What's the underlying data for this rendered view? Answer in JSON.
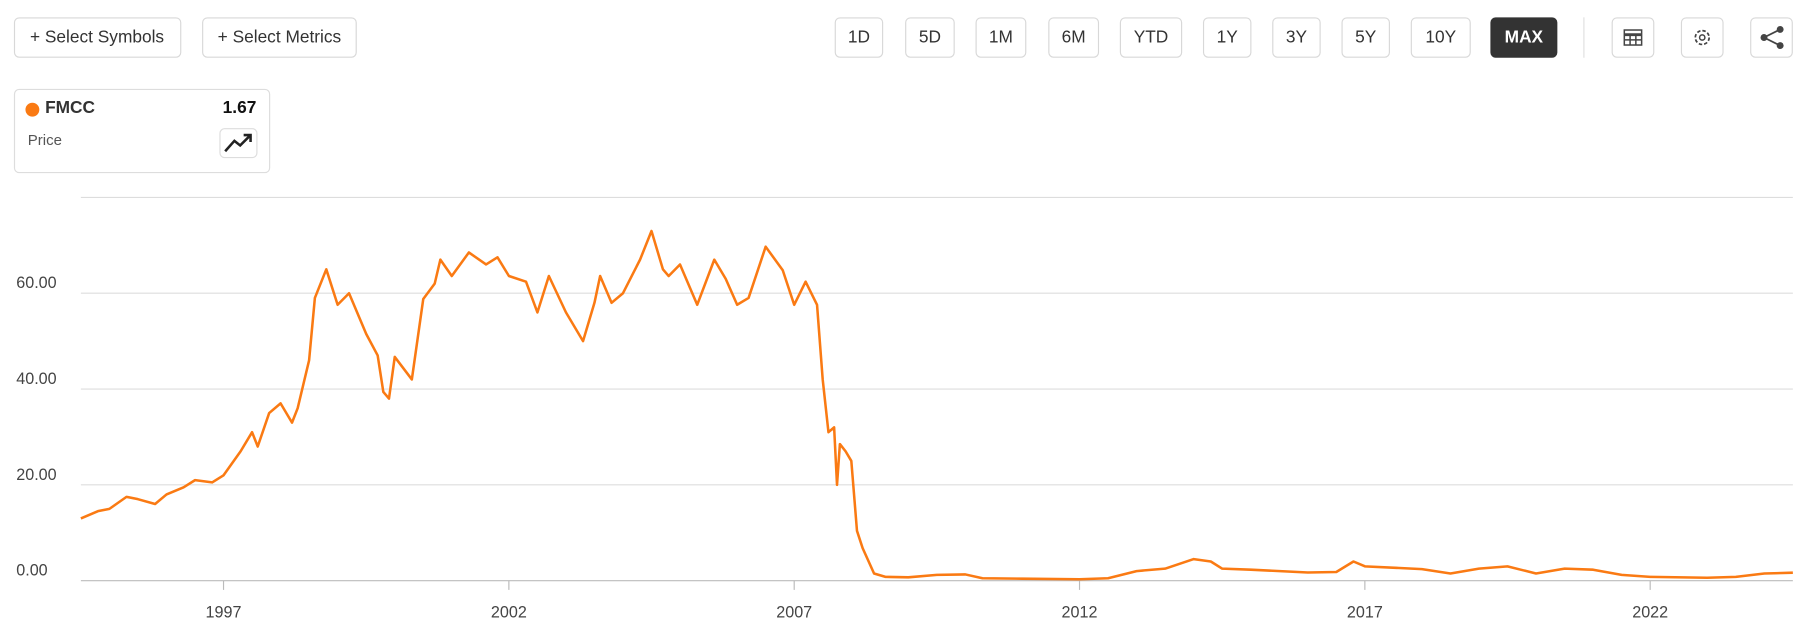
{
  "toolbar": {
    "select_symbols": "+ Select Symbols",
    "select_metrics": "+ Select Metrics",
    "ranges": [
      "1D",
      "5D",
      "1M",
      "6M",
      "YTD",
      "1Y",
      "3Y",
      "5Y",
      "10Y",
      "MAX"
    ],
    "active_range": "MAX"
  },
  "legend_box": {
    "symbol": "FMCC",
    "last_value": "1.67",
    "metric": "Price"
  },
  "chart_data": {
    "type": "line",
    "x": [
      1994.5,
      1994.8,
      1995.0,
      1995.3,
      1995.5,
      1995.8,
      1996.0,
      1996.3,
      1996.5,
      1996.8,
      1997.0,
      1997.3,
      1997.5,
      1997.6,
      1997.8,
      1998.0,
      1998.2,
      1998.3,
      1998.5,
      1998.6,
      1998.8,
      1999.0,
      1999.2,
      1999.5,
      1999.7,
      1999.8,
      1999.9,
      2000.0,
      2000.3,
      2000.5,
      2000.7,
      2000.8,
      2001.0,
      2001.3,
      2001.6,
      2001.8,
      2002.0,
      2002.3,
      2002.5,
      2002.7,
      2003.0,
      2003.3,
      2003.5,
      2003.6,
      2003.8,
      2004.0,
      2004.3,
      2004.5,
      2004.7,
      2004.8,
      2005.0,
      2005.3,
      2005.6,
      2005.8,
      2006.0,
      2006.2,
      2006.5,
      2006.8,
      2007.0,
      2007.2,
      2007.4,
      2007.5,
      2007.6,
      2007.7,
      2007.75,
      2007.8,
      2007.9,
      2008.0,
      2008.1,
      2008.2,
      2008.4,
      2008.6,
      2009.0,
      2009.5,
      2010.0,
      2010.3,
      2011.0,
      2012.0,
      2012.5,
      2013.0,
      2013.5,
      2014.0,
      2014.3,
      2014.5,
      2015.0,
      2016.0,
      2016.5,
      2016.8,
      2017.0,
      2018.0,
      2018.5,
      2019.0,
      2019.5,
      2020.0,
      2020.5,
      2021.0,
      2021.5,
      2022.0,
      2023.0,
      2023.5,
      2024.0,
      2024.5
    ],
    "series": [
      {
        "name": "FMCC",
        "color": "#fa7a13",
        "values": [
          13,
          14.5,
          15,
          17.5,
          17,
          16,
          18,
          19.5,
          21,
          20.5,
          22,
          27,
          31,
          28,
          35,
          37,
          33,
          36,
          46,
          59,
          65,
          57.6,
          60,
          51.5,
          47,
          39.4,
          38,
          46.7,
          42,
          58.8,
          62,
          67,
          63.6,
          68.5,
          66,
          67.5,
          63.6,
          62.4,
          56,
          63.6,
          56,
          50,
          58,
          63.6,
          58,
          60,
          67,
          73,
          65,
          63.6,
          66,
          57.6,
          67,
          63,
          57.6,
          59,
          69.7,
          64.8,
          57.6,
          62.4,
          57.6,
          42,
          31,
          32,
          20,
          28.5,
          27,
          25,
          10.4,
          6.8,
          1.5,
          0.8,
          0.7,
          1.2,
          1.3,
          0.5,
          0.4,
          0.3,
          0.5,
          2.0,
          2.5,
          4.5,
          4,
          2.5,
          2.3,
          1.7,
          1.8,
          4,
          3,
          2.4,
          1.5,
          2.5,
          3,
          1.5,
          2.5,
          2.3,
          1.2,
          0.8,
          0.6,
          0.8,
          1.5,
          1.67
        ]
      }
    ],
    "xlim": [
      1994.5,
      2024.5
    ],
    "xticks": [
      1997,
      2002,
      2007,
      2012,
      2017,
      2022
    ],
    "ylim": [
      0,
      80
    ],
    "yticks": [
      {
        "value": 0,
        "label": "0.00"
      },
      {
        "value": 20,
        "label": "20.00"
      },
      {
        "value": 40,
        "label": "40.00"
      },
      {
        "value": 60,
        "label": "60.00"
      }
    ],
    "grid": true
  }
}
